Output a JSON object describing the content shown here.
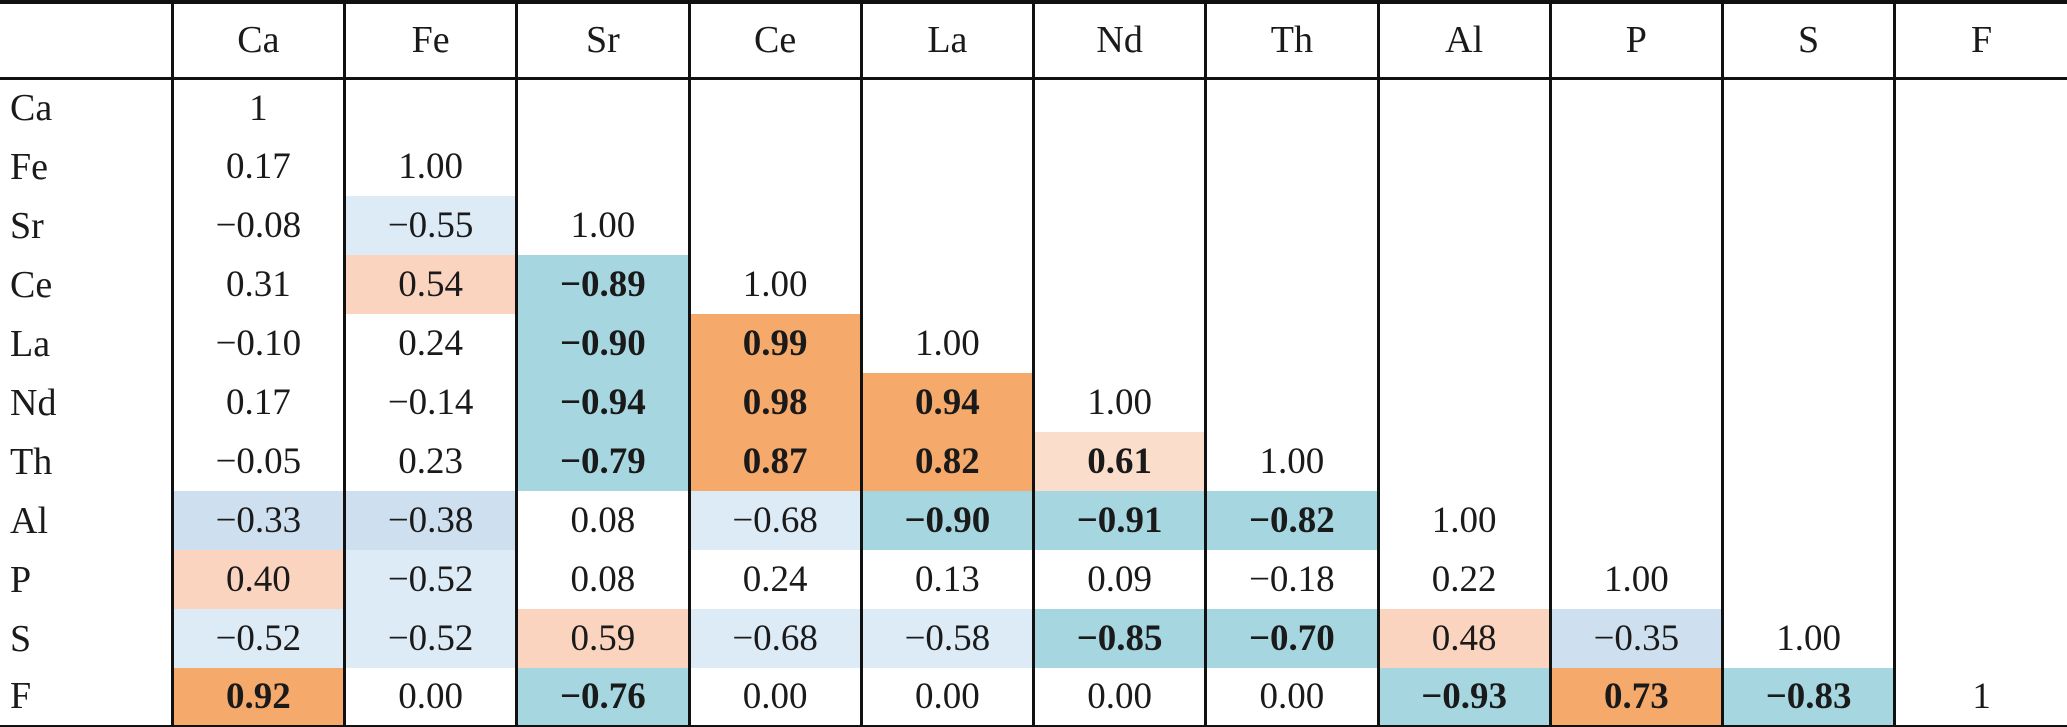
{
  "colors": {
    "orange": "#F5AA6C",
    "peach": "#FAD4BE",
    "peach_light": "#FBDDCC",
    "teal": "#A6D7E0",
    "blue_light": "#DDEBF7",
    "blue_mid": "#CEDFEF",
    "white": "#FFFFFF",
    "border": "#111111",
    "text": "#1A1A1A"
  },
  "chart_data": {
    "type": "heatmap",
    "description": "Lower-triangular correlation coefficient matrix between elements; positive correlations shaded orange/peach, negative shaded teal/blue, strong coefficients in bold",
    "corner_label": "",
    "elements": [
      "Ca",
      "Fe",
      "Sr",
      "Ce",
      "La",
      "Nd",
      "Th",
      "Al",
      "P",
      "S",
      "F"
    ],
    "matrix": [
      [
        1
      ],
      [
        0.17,
        1.0
      ],
      [
        -0.08,
        -0.55,
        1.0
      ],
      [
        0.31,
        0.54,
        -0.89,
        1.0
      ],
      [
        -0.1,
        0.24,
        -0.9,
        0.99,
        1.0
      ],
      [
        0.17,
        -0.14,
        -0.94,
        0.98,
        0.94,
        1.0
      ],
      [
        -0.05,
        0.23,
        -0.79,
        0.87,
        0.82,
        0.61,
        1.0
      ],
      [
        -0.33,
        -0.38,
        0.08,
        -0.68,
        -0.9,
        -0.91,
        -0.82,
        1.0
      ],
      [
        0.4,
        -0.52,
        0.08,
        0.24,
        0.13,
        0.09,
        -0.18,
        0.22,
        1.0
      ],
      [
        -0.52,
        -0.52,
        0.59,
        -0.68,
        -0.58,
        -0.85,
        -0.7,
        0.48,
        -0.35,
        1.0
      ],
      [
        0.92,
        0.0,
        -0.76,
        0.0,
        0.0,
        0.0,
        0.0,
        -0.93,
        0.73,
        -0.83,
        1
      ]
    ],
    "rows": [
      {
        "label": "Ca",
        "cells": [
          {
            "t": "1",
            "c": "white",
            "f": false
          }
        ]
      },
      {
        "label": "Fe",
        "cells": [
          {
            "t": "0.17",
            "c": "white",
            "f": false
          },
          {
            "t": "1.00",
            "c": "white",
            "f": false
          }
        ]
      },
      {
        "label": "Sr",
        "cells": [
          {
            "t": "−0.08",
            "c": "white",
            "f": false
          },
          {
            "t": "−0.55",
            "c": "blue_light",
            "f": false
          },
          {
            "t": "1.00",
            "c": "white",
            "f": false
          }
        ]
      },
      {
        "label": "Ce",
        "cells": [
          {
            "t": "0.31",
            "c": "white",
            "f": false
          },
          {
            "t": "0.54",
            "c": "peach",
            "f": false
          },
          {
            "t": "−0.89",
            "c": "teal",
            "f": true
          },
          {
            "t": "1.00",
            "c": "white",
            "f": false
          }
        ]
      },
      {
        "label": "La",
        "cells": [
          {
            "t": "−0.10",
            "c": "white",
            "f": false
          },
          {
            "t": "0.24",
            "c": "white",
            "f": false
          },
          {
            "t": "−0.90",
            "c": "teal",
            "f": true
          },
          {
            "t": "0.99",
            "c": "orange",
            "f": true
          },
          {
            "t": "1.00",
            "c": "white",
            "f": false
          }
        ]
      },
      {
        "label": "Nd",
        "cells": [
          {
            "t": "0.17",
            "c": "white",
            "f": false
          },
          {
            "t": "−0.14",
            "c": "white",
            "f": false
          },
          {
            "t": "−0.94",
            "c": "teal",
            "f": true
          },
          {
            "t": "0.98",
            "c": "orange",
            "f": true
          },
          {
            "t": "0.94",
            "c": "orange",
            "f": true
          },
          {
            "t": "1.00",
            "c": "white",
            "f": false
          }
        ]
      },
      {
        "label": "Th",
        "cells": [
          {
            "t": "−0.05",
            "c": "white",
            "f": false
          },
          {
            "t": "0.23",
            "c": "white",
            "f": false
          },
          {
            "t": "−0.79",
            "c": "teal",
            "f": true
          },
          {
            "t": "0.87",
            "c": "orange",
            "f": true
          },
          {
            "t": "0.82",
            "c": "orange",
            "f": true
          },
          {
            "t": "0.61",
            "c": "peach_light",
            "f": true
          },
          {
            "t": "1.00",
            "c": "white",
            "f": false
          }
        ]
      },
      {
        "label": "Al",
        "cells": [
          {
            "t": "−0.33",
            "c": "blue_mid",
            "f": false
          },
          {
            "t": "−0.38",
            "c": "blue_mid",
            "f": false
          },
          {
            "t": "0.08",
            "c": "white",
            "f": false
          },
          {
            "t": "−0.68",
            "c": "blue_light",
            "f": false
          },
          {
            "t": "−0.90",
            "c": "teal",
            "f": true
          },
          {
            "t": "−0.91",
            "c": "teal",
            "f": true
          },
          {
            "t": "−0.82",
            "c": "teal",
            "f": true
          },
          {
            "t": "1.00",
            "c": "white",
            "f": false
          }
        ]
      },
      {
        "label": "P",
        "cells": [
          {
            "t": "0.40",
            "c": "peach",
            "f": false
          },
          {
            "t": "−0.52",
            "c": "blue_light",
            "f": false
          },
          {
            "t": "0.08",
            "c": "white",
            "f": false
          },
          {
            "t": "0.24",
            "c": "white",
            "f": false
          },
          {
            "t": "0.13",
            "c": "white",
            "f": false
          },
          {
            "t": "0.09",
            "c": "white",
            "f": false
          },
          {
            "t": "−0.18",
            "c": "white",
            "f": false
          },
          {
            "t": "0.22",
            "c": "white",
            "f": false
          },
          {
            "t": "1.00",
            "c": "white",
            "f": false
          }
        ]
      },
      {
        "label": "S",
        "cells": [
          {
            "t": "−0.52",
            "c": "blue_light",
            "f": false
          },
          {
            "t": "−0.52",
            "c": "blue_light",
            "f": false
          },
          {
            "t": "0.59",
            "c": "peach",
            "f": false
          },
          {
            "t": "−0.68",
            "c": "blue_light",
            "f": false
          },
          {
            "t": "−0.58",
            "c": "blue_light",
            "f": false
          },
          {
            "t": "−0.85",
            "c": "teal",
            "f": true
          },
          {
            "t": "−0.70",
            "c": "teal",
            "f": true
          },
          {
            "t": "0.48",
            "c": "peach",
            "f": false
          },
          {
            "t": "−0.35",
            "c": "blue_mid",
            "f": false
          },
          {
            "t": "1.00",
            "c": "white",
            "f": false
          }
        ]
      },
      {
        "label": "F",
        "cells": [
          {
            "t": "0.92",
            "c": "orange",
            "f": true
          },
          {
            "t": "0.00",
            "c": "white",
            "f": false
          },
          {
            "t": "−0.76",
            "c": "teal",
            "f": true
          },
          {
            "t": "0.00",
            "c": "white",
            "f": false
          },
          {
            "t": "0.00",
            "c": "white",
            "f": false
          },
          {
            "t": "0.00",
            "c": "white",
            "f": false
          },
          {
            "t": "0.00",
            "c": "white",
            "f": false
          },
          {
            "t": "−0.93",
            "c": "teal",
            "f": true
          },
          {
            "t": "0.73",
            "c": "orange",
            "f": true
          },
          {
            "t": "−0.83",
            "c": "teal",
            "f": true
          },
          {
            "t": "1",
            "c": "white",
            "f": false
          }
        ]
      }
    ]
  }
}
